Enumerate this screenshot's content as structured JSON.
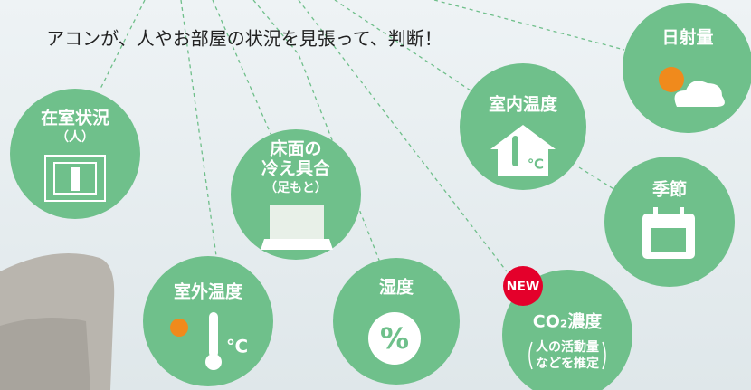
{
  "headline": "アコンが、人やお部屋の状況を見張って、判断！",
  "nodes": [
    {
      "label": "在室状況",
      "sublabel": "（人）"
    },
    {
      "label_lines": [
        "床面の",
        "冷え具合"
      ],
      "sublabel": "（足もと）"
    },
    {
      "label": "室外温度",
      "icon_text": "℃"
    },
    {
      "label": "湿度",
      "icon_text": "%"
    },
    {
      "label": "室内温度",
      "icon_text": "℃"
    },
    {
      "label": "CO₂濃度",
      "sublabel_lines": [
        "人の活動量",
        "などを推定"
      ],
      "badge": "NEW"
    },
    {
      "label": "日射量"
    },
    {
      "label": "季節"
    }
  ]
}
